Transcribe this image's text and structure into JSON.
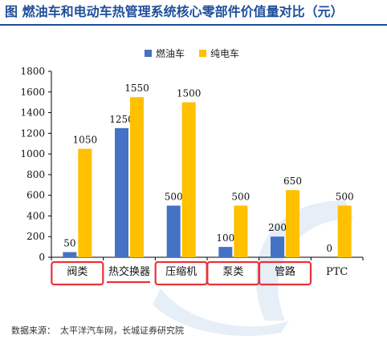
{
  "title": "图 燃油车和电动车热管理系统核心零部件价值量对比（元）",
  "source_label": "数据来源：",
  "source_text": "太平洋汽车网，长城证券研究院",
  "colors": {
    "title": "#1f4e9a",
    "fuel": "#4472c4",
    "ev": "#ffc000",
    "highlight": "#e8333a",
    "watermark": "#e6eef7"
  },
  "chart_data": {
    "type": "bar",
    "categories": [
      "阀类",
      "热交换器",
      "压缩机",
      "泵类",
      "管路",
      "PTC"
    ],
    "series": [
      {
        "name": "燃油车",
        "values": [
          50,
          1250,
          500,
          100,
          200,
          0
        ]
      },
      {
        "name": "纯电车",
        "values": [
          1050,
          1550,
          1500,
          500,
          650,
          500
        ]
      }
    ],
    "ylim": [
      0,
      1800
    ],
    "yticks": [
      0,
      200,
      400,
      600,
      800,
      1000,
      1200,
      1400,
      1600,
      1800
    ],
    "legend_position": "top",
    "grid": false,
    "highlighted_categories": [
      "阀类",
      "压缩机",
      "泵类",
      "管路"
    ],
    "underlined_categories": [
      "热交换器"
    ]
  }
}
